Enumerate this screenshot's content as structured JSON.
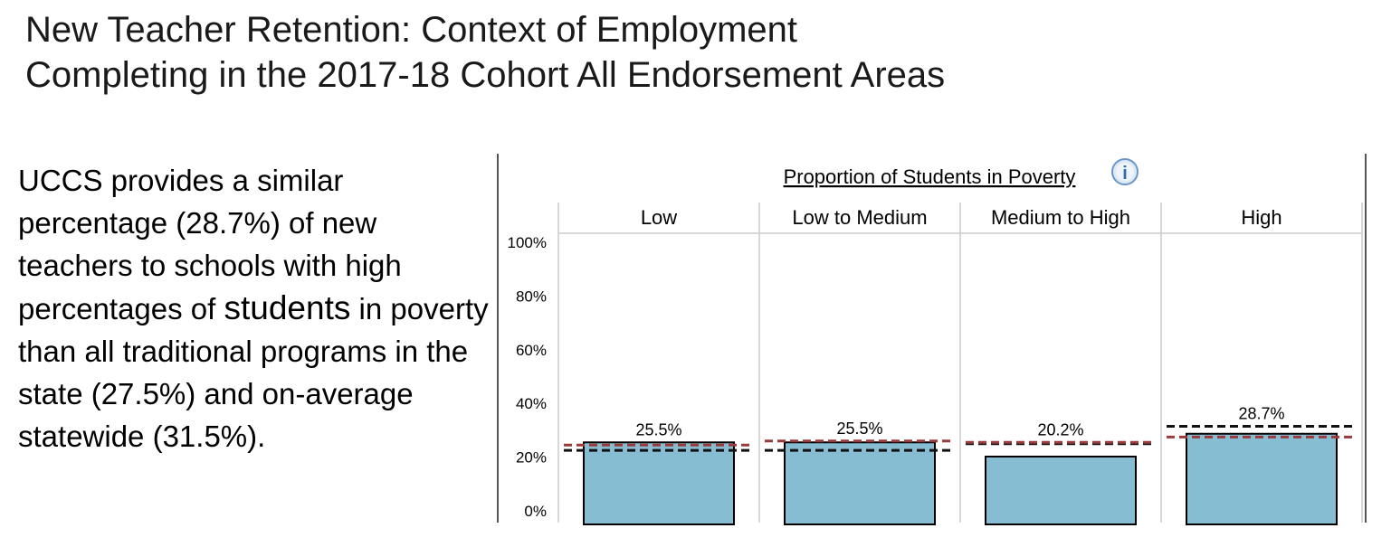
{
  "header": {
    "title_line1": "New Teacher Retention: Context of Employment",
    "title_line2": "Completing in the 2017-18 Cohort All Endorsement Areas"
  },
  "description": {
    "part1": "UCCS provides a similar percentage (28.7%) of new teachers to schools with high percentages of ",
    "emphasis": "students",
    "part2": " in poverty than all traditional programs in the state (27.5%) and on-average statewide (31.5%)."
  },
  "info_icon": "info-icon",
  "chart_data": {
    "type": "bar",
    "title": "Proportion of Students in Poverty",
    "categories": [
      "Low",
      "Low to Medium",
      "Medium to High",
      "High"
    ],
    "values": [
      25.5,
      25.5,
      20.2,
      28.7
    ],
    "data_labels": [
      "25.5%",
      "25.5%",
      "20.2%",
      "28.7%"
    ],
    "reference_lines": [
      {
        "style": "dashed",
        "color": "#111111",
        "values": [
          22.5,
          22.5,
          25.0,
          31.5
        ]
      },
      {
        "style": "dashed",
        "color": "#9b3a3a",
        "values": [
          24.5,
          26.0,
          25.5,
          27.5
        ]
      }
    ],
    "yticks": [
      "0%",
      "20%",
      "40%",
      "60%",
      "80%",
      "100%"
    ],
    "ylim": [
      0,
      100
    ],
    "bar_color": "#87bdd3",
    "grid": true
  }
}
